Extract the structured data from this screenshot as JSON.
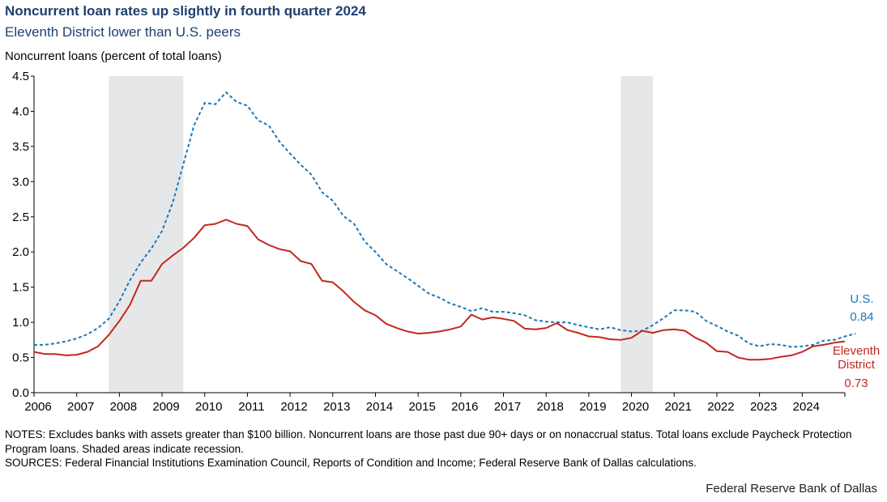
{
  "header": {
    "title": "Noncurrent loan rates up slightly in fourth quarter 2024",
    "subtitle": "Eleventh District lower than U.S. peers"
  },
  "footer": {
    "notes": "NOTES: Excludes banks with assets greater than $100 billion. Noncurrent  loans are those past due 90+ days or on nonaccrual  status. Total loans exclude  Paycheck Protection Program loans. Shaded areas indicate recession.",
    "sources": "SOURCES: Federal Financial Institutions  Examination Council, Reports of Condition and Income;  Federal Reserve Bank of Dallas calculations.",
    "org": "Federal Reserve Bank of Dallas"
  },
  "chart_data": {
    "type": "line",
    "title": "Noncurrent loan rates up slightly in fourth quarter 2024",
    "subtitle": "Eleventh District lower than U.S. peers",
    "xlabel": "",
    "ylabel": "Noncurrent loans (percent of total loans)",
    "xlim": [
      2006,
      2025
    ],
    "ylim": [
      0,
      4.5
    ],
    "x_ticks": [
      "2006",
      "2007",
      "2008",
      "2009",
      "2010",
      "2011",
      "2012",
      "2013",
      "2014",
      "2015",
      "2016",
      "2017",
      "2018",
      "2019",
      "2020",
      "2021",
      "2022",
      "2023",
      "2024"
    ],
    "y_ticks": [
      "0.0",
      "0.5",
      "1.0",
      "1.5",
      "2.0",
      "2.5",
      "3.0",
      "3.5",
      "4.0",
      "4.5"
    ],
    "grid": false,
    "recessions": [
      [
        2007.75,
        2009.5
      ],
      [
        2019.75,
        2020.5
      ]
    ],
    "colors": {
      "us": "#1f77b4",
      "district": "#c0281f",
      "recession": "#e6e7e8"
    },
    "series": [
      {
        "name": "U.S.",
        "key": "us",
        "style": "dashed",
        "end_label": "U.S.",
        "end_value_label": "0.84",
        "x_start": 2006.0,
        "step": 0.25,
        "values": [
          0.68,
          0.68,
          0.7,
          0.73,
          0.77,
          0.83,
          0.92,
          1.05,
          1.3,
          1.6,
          1.85,
          2.05,
          2.3,
          2.7,
          3.25,
          3.8,
          4.12,
          4.1,
          4.27,
          4.13,
          4.08,
          3.87,
          3.8,
          3.57,
          3.4,
          3.24,
          3.1,
          2.85,
          2.73,
          2.51,
          2.4,
          2.15,
          2.0,
          1.83,
          1.73,
          1.63,
          1.52,
          1.41,
          1.35,
          1.27,
          1.22,
          1.16,
          1.2,
          1.15,
          1.15,
          1.13,
          1.1,
          1.03,
          1.01,
          1.0,
          1.0,
          0.96,
          0.93,
          0.9,
          0.93,
          0.89,
          0.87,
          0.88,
          0.96,
          1.06,
          1.17,
          1.17,
          1.15,
          1.02,
          0.95,
          0.87,
          0.81,
          0.7,
          0.66,
          0.69,
          0.68,
          0.65,
          0.66,
          0.68,
          0.74,
          0.75,
          0.8,
          0.84
        ]
      },
      {
        "name": "Eleventh District",
        "key": "district",
        "style": "solid",
        "end_label_lines": [
          "Eleventh",
          "District"
        ],
        "end_value_label": "0.73",
        "x_start": 2006.0,
        "step": 0.25,
        "values": [
          0.58,
          0.55,
          0.55,
          0.53,
          0.54,
          0.58,
          0.66,
          0.82,
          1.02,
          1.25,
          1.59,
          1.59,
          1.83,
          1.95,
          2.06,
          2.2,
          2.38,
          2.4,
          2.46,
          2.4,
          2.37,
          2.18,
          2.1,
          2.04,
          2.01,
          1.87,
          1.83,
          1.59,
          1.57,
          1.44,
          1.29,
          1.17,
          1.1,
          0.98,
          0.92,
          0.87,
          0.84,
          0.85,
          0.87,
          0.9,
          0.94,
          1.11,
          1.04,
          1.07,
          1.05,
          1.02,
          0.91,
          0.9,
          0.92,
          0.99,
          0.89,
          0.85,
          0.8,
          0.79,
          0.76,
          0.75,
          0.78,
          0.88,
          0.85,
          0.89,
          0.9,
          0.88,
          0.78,
          0.71,
          0.59,
          0.58,
          0.5,
          0.47,
          0.47,
          0.48,
          0.51,
          0.53,
          0.58,
          0.66,
          0.68,
          0.71,
          0.73
        ]
      }
    ]
  }
}
